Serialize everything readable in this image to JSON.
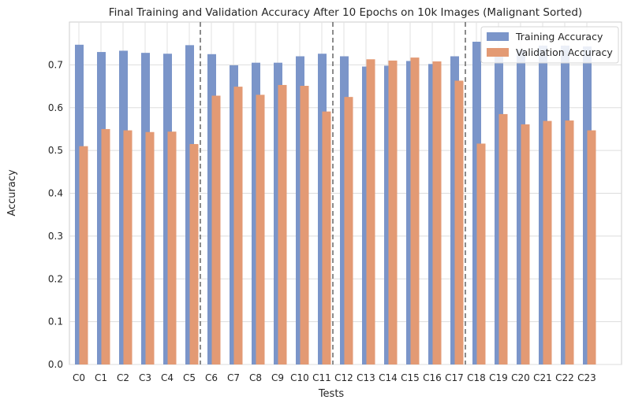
{
  "chart_data": {
    "type": "bar",
    "title": "Final Training and Validation Accuracy After 10 Epochs on 10k Images (Malignant Sorted)",
    "xlabel": "Tests",
    "ylabel": "Accuracy",
    "ylim": [
      0,
      0.8
    ],
    "yticks": [
      "0.0",
      "0.1",
      "0.2",
      "0.3",
      "0.4",
      "0.5",
      "0.6",
      "0.7"
    ],
    "grid": true,
    "legend_position": "top-right",
    "categories": [
      "C0",
      "C1",
      "C2",
      "C3",
      "C4",
      "C5",
      "C6",
      "C7",
      "C8",
      "C9",
      "C10",
      "C11",
      "C12",
      "C13",
      "C14",
      "C15",
      "C16",
      "C17",
      "C18",
      "C19",
      "C20",
      "C21",
      "C22",
      "C23"
    ],
    "series": [
      {
        "name": "Training Accuracy",
        "color": "#7b95c9",
        "values": [
          0.747,
          0.73,
          0.733,
          0.728,
          0.726,
          0.746,
          0.725,
          0.699,
          0.705,
          0.705,
          0.72,
          0.726,
          0.72,
          0.696,
          0.698,
          0.709,
          0.702,
          0.72,
          0.754,
          0.738,
          0.736,
          0.745,
          0.745,
          0.743
        ]
      },
      {
        "name": "Validation Accuracy",
        "color": "#e39a74",
        "values": [
          0.51,
          0.55,
          0.547,
          0.543,
          0.544,
          0.515,
          0.628,
          0.649,
          0.63,
          0.653,
          0.651,
          0.591,
          0.625,
          0.713,
          0.71,
          0.717,
          0.708,
          0.663,
          0.516,
          0.585,
          0.561,
          0.569,
          0.57,
          0.547
        ]
      }
    ],
    "vlines_after_index": [
      5,
      11,
      17
    ]
  }
}
